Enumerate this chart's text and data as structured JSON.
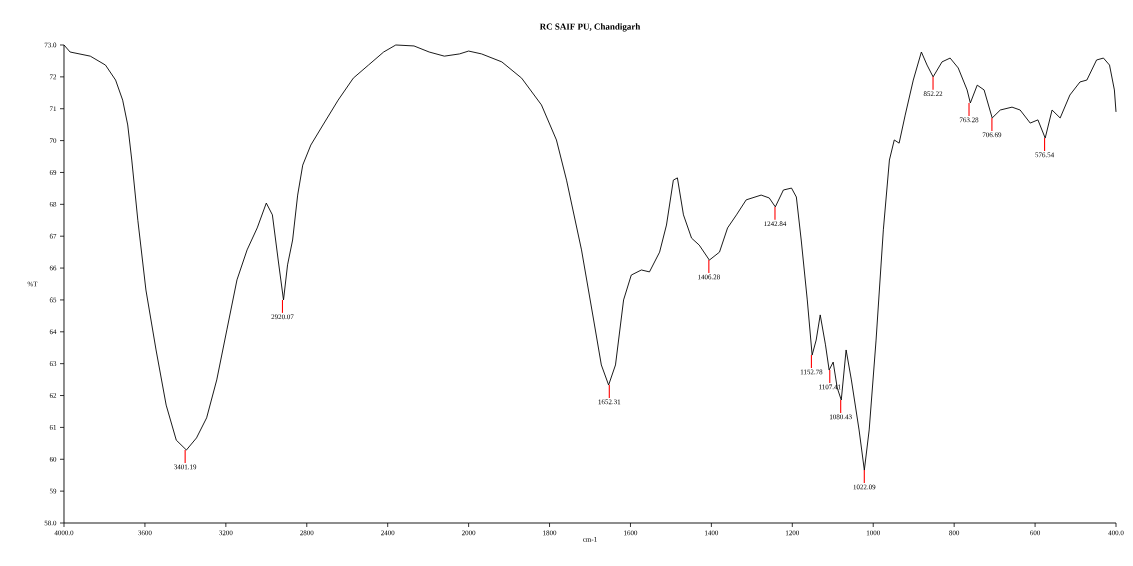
{
  "chart_data": [
    {
      "type": "line",
      "ylabel": "%T",
      "series": [
        {
          "color": "#000000",
          "line_style": "solid",
          "x": [
            4000,
            3970,
            3870,
            3795,
            3745,
            3710,
            3685,
            3665,
            3635,
            3595,
            3545,
            3495,
            3445,
            3395,
            3345,
            3295,
            3245,
            3195,
            3145,
            3095,
            3045,
            3000,
            2970,
            2940,
            2915,
            2895,
            2870,
            2845,
            2820,
            2780,
            2720,
            2645,
            2570,
            2495,
            2420,
            2360,
            2270,
            2195,
            2120,
            2045,
            2000
          ],
          "values": [
            73.0,
            72.78,
            72.65,
            72.37,
            71.9,
            71.27,
            70.49,
            69.39,
            67.5,
            65.31,
            63.43,
            61.7,
            60.6,
            60.29,
            60.67,
            61.3,
            62.49,
            64.06,
            65.63,
            66.57,
            67.26,
            68.04,
            67.67,
            66.19,
            65.0,
            66.1,
            66.88,
            68.29,
            69.23,
            69.86,
            70.49,
            71.27,
            71.96,
            72.37,
            72.78,
            73.0,
            72.97,
            72.78,
            72.65,
            72.72,
            72.81
          ]
        }
      ],
      "xlim": [
        4000,
        2000
      ],
      "ylim": [
        58,
        73
      ],
      "xticks": [
        {
          "value": 4000,
          "label": "4000.0"
        },
        3600,
        3200,
        2800,
        2400
      ],
      "yticks": [
        {
          "value": 58,
          "label": "58.0"
        },
        59,
        60,
        61,
        62,
        63,
        64,
        65,
        66,
        67,
        68,
        69,
        70,
        71,
        72,
        {
          "value": 73,
          "label": "73.0"
        }
      ],
      "annotations": [
        {
          "text": "3401.19",
          "x": 3401.19,
          "y": 60.29
        },
        {
          "text": "2920.07",
          "x": 2920.07,
          "y": 65.0
        }
      ]
    },
    {
      "type": "line",
      "title": "RC SAIF PU, Chandigarh",
      "xlabel": "cm-1",
      "tick_labels": "x",
      "series": [
        {
          "color": "#000000",
          "line_style": "solid",
          "x": [
            2000,
            1968,
            1918,
            1869,
            1820,
            1783,
            1758,
            1721,
            1691,
            1672,
            1654,
            1637,
            1617,
            1598,
            1573,
            1553,
            1528,
            1511,
            1494,
            1484,
            1469,
            1449,
            1430,
            1405,
            1380,
            1360,
            1338,
            1314,
            1277,
            1257,
            1242,
            1222,
            1202,
            1190,
            1178,
            1163,
            1151,
            1141,
            1131,
            1118,
            1109,
            1099,
            1089,
            1079,
            1067,
            1054,
            1035,
            1022,
            1010,
            993,
            975,
            960,
            948,
            936,
            921,
            901,
            881,
            867,
            852,
            830,
            810,
            790,
            768,
            760,
            743,
            726,
            706,
            686,
            657,
            637,
            612,
            593,
            575,
            558,
            538,
            514,
            489,
            472,
            448,
            431,
            416,
            404,
            400
          ],
          "values": [
            72.81,
            72.72,
            72.47,
            71.96,
            71.12,
            70.02,
            68.76,
            66.57,
            64.37,
            62.96,
            62.33,
            62.96,
            65.0,
            65.78,
            65.94,
            65.88,
            66.5,
            67.35,
            68.76,
            68.83,
            67.67,
            66.94,
            66.72,
            66.25,
            66.5,
            67.26,
            67.67,
            68.14,
            68.29,
            68.2,
            67.92,
            68.45,
            68.51,
            68.23,
            66.88,
            65.0,
            63.27,
            63.74,
            64.53,
            63.59,
            62.8,
            63.05,
            62.24,
            61.86,
            63.43,
            62.49,
            60.92,
            59.66,
            60.92,
            63.74,
            67.2,
            69.39,
            70.02,
            69.92,
            70.8,
            71.9,
            72.78,
            72.37,
            72.0,
            72.47,
            72.59,
            72.28,
            71.59,
            71.18,
            71.74,
            71.59,
            70.71,
            70.96,
            71.05,
            70.96,
            70.55,
            70.65,
            70.08,
            70.96,
            70.71,
            71.43,
            71.84,
            71.9,
            72.53,
            72.59,
            72.37,
            71.59,
            70.9
          ]
        }
      ],
      "xlim": [
        2000,
        400
      ],
      "ylim": [
        58,
        73
      ],
      "xticks": [
        2000,
        1800,
        1600,
        1400,
        1200,
        1000,
        800,
        600,
        {
          "value": 400,
          "label": "400.0"
        }
      ],
      "annotations": [
        {
          "text": "1652.31",
          "x": 1652.31,
          "y": 62.33
        },
        {
          "text": "1406.28",
          "x": 1406.28,
          "y": 66.25
        },
        {
          "text": "1242.84",
          "x": 1242.84,
          "y": 67.92
        },
        {
          "text": "1152.78",
          "x": 1152.78,
          "y": 63.27
        },
        {
          "text": "1107.41",
          "x": 1107.41,
          "y": 62.8
        },
        {
          "text": "1080.43",
          "x": 1080.43,
          "y": 61.86
        },
        {
          "text": "1022.09",
          "x": 1022.09,
          "y": 59.66
        },
        {
          "text": "852.22",
          "x": 852.22,
          "y": 72.0
        },
        {
          "text": "763.28",
          "x": 763.28,
          "y": 71.18
        },
        {
          "text": "706.69",
          "x": 706.69,
          "y": 70.71
        },
        {
          "text": "576.54",
          "x": 576.54,
          "y": 70.08
        }
      ]
    }
  ]
}
